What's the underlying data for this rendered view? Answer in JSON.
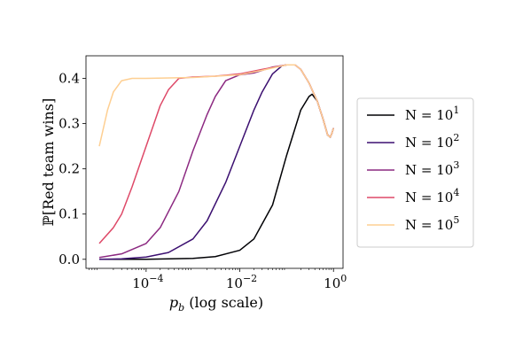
{
  "chart_data": {
    "type": "line",
    "xlabel": "p",
    "xlabel_sub": "b",
    "xlabel_suffix": " (log scale)",
    "ylabel": "ℙ[Red team wins]",
    "x_scale": "log",
    "xlim": [
      5.2e-06,
      1.6
    ],
    "ylim": [
      -0.02,
      0.45
    ],
    "x_ticks": [
      {
        "value": 0.0001,
        "base": "10",
        "exp": "−4"
      },
      {
        "value": 0.01,
        "base": "10",
        "exp": "−2"
      },
      {
        "value": 1,
        "base": "10",
        "exp": "0"
      }
    ],
    "y_ticks": [
      {
        "value": 0.0,
        "label": "0.0"
      },
      {
        "value": 0.1,
        "label": "0.1"
      },
      {
        "value": 0.2,
        "label": "0.2"
      },
      {
        "value": 0.3,
        "label": "0.3"
      },
      {
        "value": 0.4,
        "label": "0.4"
      }
    ],
    "grid": false,
    "legend_position": "right",
    "series": [
      {
        "name_base": "N = 10",
        "name_exp": "1",
        "color": "#000004",
        "points": [
          [
            1e-05,
            0.0
          ],
          [
            0.0001,
            0.0
          ],
          [
            0.001,
            0.002
          ],
          [
            0.003,
            0.006
          ],
          [
            0.01,
            0.02
          ],
          [
            0.02,
            0.045
          ],
          [
            0.05,
            0.12
          ],
          [
            0.1,
            0.23
          ],
          [
            0.2,
            0.33
          ],
          [
            0.3,
            0.36
          ],
          [
            0.35,
            0.365
          ],
          [
            0.45,
            0.35
          ],
          [
            0.6,
            0.31
          ],
          [
            0.75,
            0.275
          ],
          [
            0.85,
            0.27
          ],
          [
            0.92,
            0.278
          ],
          [
            1.0,
            0.29
          ]
        ]
      },
      {
        "name_base": "N = 10",
        "name_exp": "2",
        "color": "#3b0f70",
        "points": [
          [
            1e-05,
            0.0
          ],
          [
            3e-05,
            0.001
          ],
          [
            0.0001,
            0.005
          ],
          [
            0.0003,
            0.015
          ],
          [
            0.001,
            0.045
          ],
          [
            0.002,
            0.085
          ],
          [
            0.005,
            0.17
          ],
          [
            0.01,
            0.25
          ],
          [
            0.02,
            0.33
          ],
          [
            0.03,
            0.37
          ],
          [
            0.05,
            0.41
          ],
          [
            0.08,
            0.428
          ],
          [
            0.1,
            0.43
          ],
          [
            0.15,
            0.43
          ],
          [
            0.2,
            0.42
          ],
          [
            0.3,
            0.39
          ],
          [
            0.45,
            0.35
          ],
          [
            0.6,
            0.31
          ],
          [
            0.75,
            0.275
          ],
          [
            0.85,
            0.27
          ],
          [
            0.92,
            0.278
          ],
          [
            1.0,
            0.29
          ]
        ]
      },
      {
        "name_base": "N = 10",
        "name_exp": "3",
        "color": "#8c2981",
        "points": [
          [
            1e-05,
            0.004
          ],
          [
            3e-05,
            0.012
          ],
          [
            0.0001,
            0.035
          ],
          [
            0.0002,
            0.07
          ],
          [
            0.0005,
            0.15
          ],
          [
            0.001,
            0.24
          ],
          [
            0.002,
            0.32
          ],
          [
            0.003,
            0.36
          ],
          [
            0.005,
            0.395
          ],
          [
            0.01,
            0.408
          ],
          [
            0.02,
            0.412
          ],
          [
            0.05,
            0.425
          ],
          [
            0.1,
            0.43
          ],
          [
            0.15,
            0.43
          ],
          [
            0.2,
            0.42
          ],
          [
            0.3,
            0.39
          ],
          [
            0.45,
            0.35
          ],
          [
            0.6,
            0.31
          ],
          [
            0.75,
            0.275
          ],
          [
            0.85,
            0.27
          ],
          [
            0.92,
            0.278
          ],
          [
            1.0,
            0.29
          ]
        ]
      },
      {
        "name_base": "N = 10",
        "name_exp": "4",
        "color": "#de4968",
        "points": [
          [
            1e-05,
            0.035
          ],
          [
            2e-05,
            0.07
          ],
          [
            3e-05,
            0.1
          ],
          [
            5e-05,
            0.16
          ],
          [
            0.0001,
            0.25
          ],
          [
            0.0002,
            0.34
          ],
          [
            0.0003,
            0.375
          ],
          [
            0.0005,
            0.4
          ],
          [
            0.001,
            0.403
          ],
          [
            0.003,
            0.405
          ],
          [
            0.01,
            0.41
          ],
          [
            0.03,
            0.42
          ],
          [
            0.1,
            0.43
          ],
          [
            0.15,
            0.43
          ],
          [
            0.2,
            0.42
          ],
          [
            0.3,
            0.39
          ],
          [
            0.45,
            0.35
          ],
          [
            0.6,
            0.31
          ],
          [
            0.75,
            0.275
          ],
          [
            0.85,
            0.27
          ],
          [
            0.92,
            0.278
          ],
          [
            1.0,
            0.29
          ]
        ]
      },
      {
        "name_base": "N = 10",
        "name_exp": "5",
        "color": "#fecf92",
        "points": [
          [
            1e-05,
            0.25
          ],
          [
            1.5e-05,
            0.33
          ],
          [
            2e-05,
            0.37
          ],
          [
            3e-05,
            0.395
          ],
          [
            5e-05,
            0.4
          ],
          [
            0.0001,
            0.4
          ],
          [
            0.001,
            0.402
          ],
          [
            0.01,
            0.408
          ],
          [
            0.03,
            0.418
          ],
          [
            0.1,
            0.43
          ],
          [
            0.15,
            0.43
          ],
          [
            0.2,
            0.42
          ],
          [
            0.3,
            0.39
          ],
          [
            0.45,
            0.35
          ],
          [
            0.6,
            0.31
          ],
          [
            0.75,
            0.275
          ],
          [
            0.85,
            0.27
          ],
          [
            0.92,
            0.278
          ],
          [
            1.0,
            0.29
          ]
        ]
      }
    ]
  }
}
